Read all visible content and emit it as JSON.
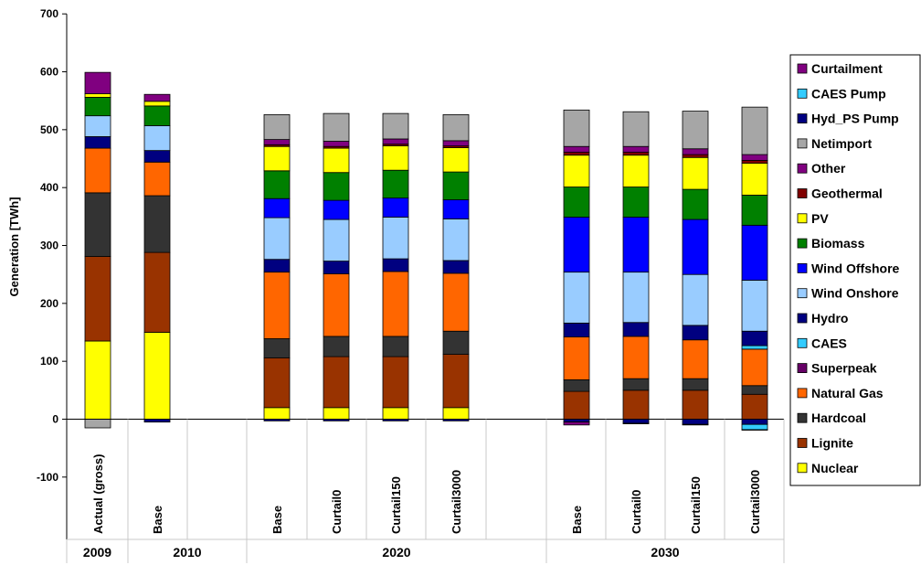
{
  "chart_data": {
    "type": "bar",
    "stacked": true,
    "ylabel": "Generation [TWh]",
    "ylim": [
      -100,
      700
    ],
    "yticks": [
      -100,
      0,
      100,
      200,
      300,
      400,
      500,
      600,
      700
    ],
    "grid": false,
    "legend_position": "right",
    "groups": [
      {
        "label": "2009",
        "categories": [
          "Actual (gross)"
        ]
      },
      {
        "label": "2010",
        "categories": [
          "Base"
        ]
      },
      {
        "label": "2020",
        "categories": [
          "Base",
          "Curtail0",
          "Curtail150",
          "Curtail3000"
        ]
      },
      {
        "label": "2030",
        "categories": [
          "Base",
          "Curtail0",
          "Curtail150",
          "Curtail3000"
        ]
      }
    ],
    "categories": [
      "Actual (gross)",
      "Base",
      "Base",
      "Curtail0",
      "Curtail150",
      "Curtail3000",
      "Base",
      "Curtail0",
      "Curtail150",
      "Curtail3000"
    ],
    "legend_order": [
      "Curtailment",
      "CAES Pump",
      "Hyd_PS Pump",
      "Netimport",
      "Other",
      "Geothermal",
      "PV",
      "Biomass",
      "Wind Offshore",
      "Wind Onshore",
      "Hydro",
      "CAES",
      "Superpeak",
      "Natural Gas",
      "Hardcoal",
      "Lignite",
      "Nuclear"
    ],
    "series": [
      {
        "name": "Nuclear",
        "color": "#ffff00",
        "values": [
          135,
          150,
          20,
          20,
          20,
          20,
          0,
          0,
          0,
          0
        ]
      },
      {
        "name": "Lignite",
        "color": "#993300",
        "values": [
          146,
          138,
          86,
          88,
          88,
          92,
          48,
          50,
          50,
          43
        ]
      },
      {
        "name": "Hardcoal",
        "color": "#333333",
        "values": [
          110,
          98,
          33,
          35,
          35,
          40,
          20,
          20,
          20,
          15
        ]
      },
      {
        "name": "Natural Gas",
        "color": "#ff6600",
        "values": [
          77,
          58,
          115,
          108,
          112,
          100,
          74,
          73,
          67,
          63
        ]
      },
      {
        "name": "Superpeak",
        "color": "#660066",
        "values": [
          0,
          0,
          0,
          0,
          0,
          0,
          0,
          0,
          0,
          0
        ]
      },
      {
        "name": "CAES",
        "color": "#33ccff",
        "values": [
          0,
          0,
          0,
          0,
          0,
          0,
          0,
          0,
          0,
          6
        ]
      },
      {
        "name": "Hydro",
        "color": "#000080",
        "values": [
          20,
          20,
          22,
          22,
          22,
          22,
          24,
          24,
          25,
          25
        ]
      },
      {
        "name": "Wind Onshore",
        "color": "#99ccff",
        "values": [
          36,
          43,
          72,
          72,
          72,
          72,
          88,
          87,
          88,
          88
        ]
      },
      {
        "name": "Wind Offshore",
        "color": "#0000ff",
        "values": [
          0,
          0,
          33,
          33,
          33,
          33,
          95,
          95,
          95,
          95
        ]
      },
      {
        "name": "Biomass",
        "color": "#008000",
        "values": [
          32,
          34,
          48,
          48,
          48,
          48,
          52,
          52,
          52,
          52
        ]
      },
      {
        "name": "PV",
        "color": "#ffff00",
        "values": [
          6,
          8,
          42,
          42,
          42,
          42,
          55,
          55,
          55,
          55
        ]
      },
      {
        "name": "Geothermal",
        "color": "#800000",
        "values": [
          0,
          0,
          3,
          3,
          3,
          3,
          5,
          5,
          5,
          5
        ]
      },
      {
        "name": "Other",
        "color": "#800080",
        "values": [
          37,
          12,
          9,
          9,
          9,
          9,
          10,
          10,
          10,
          10
        ]
      },
      {
        "name": "Netimport",
        "color": "#a6a6a6",
        "values": [
          -15,
          0,
          43,
          48,
          44,
          45,
          63,
          60,
          65,
          82
        ]
      },
      {
        "name": "Hyd_PS Pump",
        "color": "#000080",
        "values": [
          0,
          -5,
          -3,
          -3,
          -3,
          -3,
          -5,
          -7,
          -9,
          -9
        ]
      },
      {
        "name": "CAES Pump",
        "color": "#33ccff",
        "values": [
          0,
          0,
          0,
          0,
          0,
          0,
          0,
          0,
          0,
          -9
        ]
      },
      {
        "name": "Curtailment",
        "color": "#800080",
        "values": [
          0,
          0,
          0,
          0,
          0,
          0,
          -5,
          -1,
          -1,
          -1
        ]
      }
    ]
  }
}
